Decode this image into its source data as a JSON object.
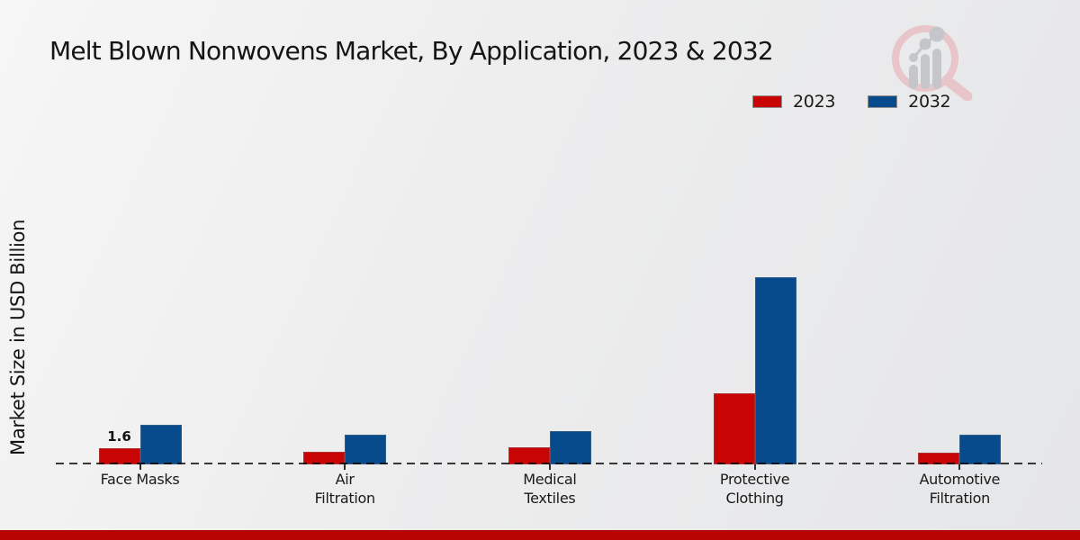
{
  "title": "Melt Blown Nonwovens Market, By Application, 2023 & 2032",
  "y_axis_label": "Market Size in USD Billion",
  "legend": {
    "items": [
      {
        "label": "2023",
        "color": "#c80404"
      },
      {
        "label": "2032",
        "color": "#074b8c"
      }
    ]
  },
  "annotation": {
    "text": "1.6"
  },
  "branding": {
    "logo_icon": "magnifier-bar-chart-logo",
    "footer_bar_color": "#b90404"
  },
  "colors": {
    "series_2023": "#c80404",
    "series_2032": "#074b8c",
    "baseline": "#3c3c3c",
    "background": "#ececee",
    "footer_bar": "#b90404"
  },
  "chart_data": {
    "type": "bar",
    "title": "Melt Blown Nonwovens Market, By Application, 2023 & 2032",
    "xlabel": "",
    "ylabel": "Market Size in USD Billion",
    "categories": [
      "Face Masks",
      "Air Filtration",
      "Medical Textiles",
      "Protective Clothing",
      "Automotive Filtration"
    ],
    "category_label_lines": [
      [
        "Face Masks"
      ],
      [
        "Air",
        "Filtration"
      ],
      [
        "Medical",
        "Textiles"
      ],
      [
        "Protective",
        "Clothing"
      ],
      [
        "Automotive",
        "Filtration"
      ]
    ],
    "series": [
      {
        "name": "2023",
        "color": "#c80404",
        "values": [
          1.6,
          1.3,
          1.7,
          7.2,
          1.2
        ]
      },
      {
        "name": "2032",
        "color": "#074b8c",
        "values": [
          4.0,
          3.0,
          3.4,
          19.0,
          3.0
        ]
      }
    ],
    "data_labels": [
      {
        "series": "2023",
        "category": "Face Masks",
        "text": "1.6",
        "value": 1.6
      }
    ],
    "ylim": [
      0,
      20
    ],
    "grid": false,
    "axis_style": "dashed-baseline-only",
    "legend_position": "top-right"
  }
}
